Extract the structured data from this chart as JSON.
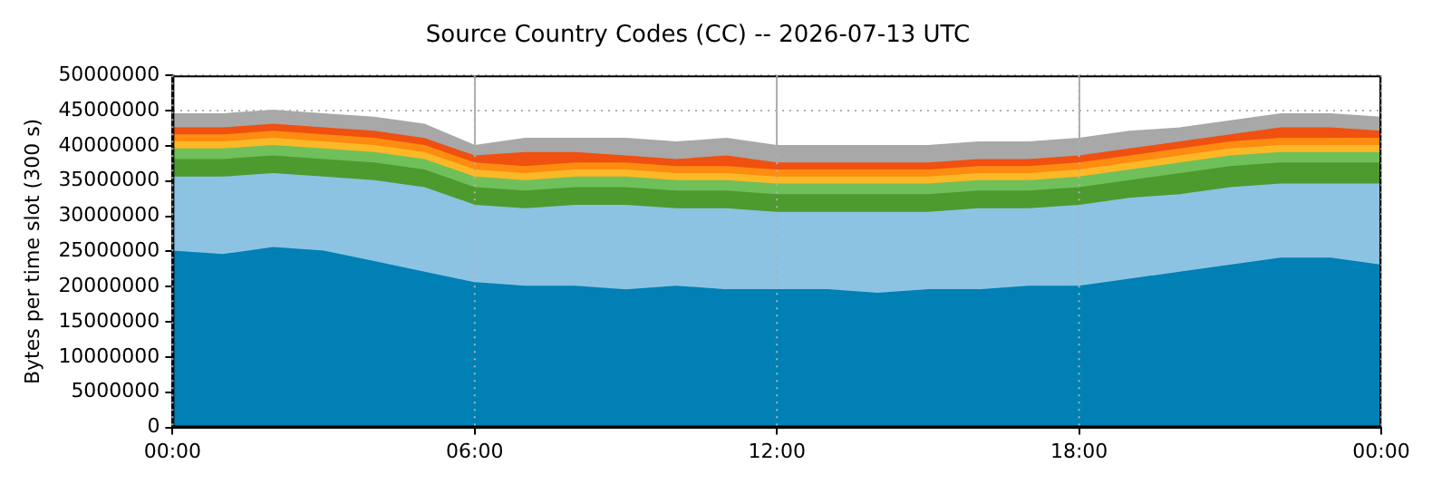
{
  "chart_data": {
    "type": "area",
    "stacked": true,
    "title": "Source Country Codes (CC) -- 2026-07-13 UTC",
    "ylabel": "Bytes per time slot (300 s)",
    "x": [
      0,
      1,
      2,
      3,
      4,
      5,
      6,
      7,
      8,
      9,
      10,
      11,
      12,
      13,
      14,
      15,
      16,
      17,
      18,
      19,
      20,
      21,
      22,
      23,
      24
    ],
    "xlim": [
      0,
      24
    ],
    "xticks": [
      {
        "value": 0,
        "label": "00:00"
      },
      {
        "value": 6,
        "label": "06:00"
      },
      {
        "value": 12,
        "label": "12:00"
      },
      {
        "value": 18,
        "label": "18:00"
      },
      {
        "value": 24,
        "label": "00:00"
      }
    ],
    "ylim": [
      0,
      50000000
    ],
    "yticks": [
      0,
      5000000,
      10000000,
      15000000,
      20000000,
      25000000,
      30000000,
      35000000,
      40000000,
      45000000,
      50000000
    ],
    "grid": true,
    "legend": false,
    "marker": "none",
    "series": [
      {
        "color": "#0080b4",
        "values": [
          25000000,
          24500000,
          25500000,
          25000000,
          23500000,
          22000000,
          20500000,
          20000000,
          20000000,
          19500000,
          20000000,
          19500000,
          19500000,
          19500000,
          19000000,
          19500000,
          19500000,
          20000000,
          20000000,
          21000000,
          22000000,
          23000000,
          24000000,
          24000000,
          23000000
        ]
      },
      {
        "color": "#8cc3e3",
        "values": [
          10500000,
          11000000,
          10500000,
          10500000,
          11500000,
          12000000,
          11000000,
          11000000,
          11500000,
          12000000,
          11000000,
          11500000,
          11000000,
          11000000,
          11500000,
          11000000,
          11500000,
          11000000,
          11500000,
          11500000,
          11000000,
          11000000,
          10500000,
          10500000,
          11500000
        ]
      },
      {
        "color": "#4d9a2f",
        "values": [
          2500000,
          2500000,
          2500000,
          2500000,
          2500000,
          2500000,
          2500000,
          2500000,
          2500000,
          2500000,
          2500000,
          2500000,
          2500000,
          2500000,
          2500000,
          2500000,
          2500000,
          2500000,
          2500000,
          2500000,
          3000000,
          3000000,
          3000000,
          3000000,
          3000000
        ]
      },
      {
        "color": "#6fc05a",
        "values": [
          1500000,
          1500000,
          1500000,
          1500000,
          1500000,
          1500000,
          1500000,
          1500000,
          1500000,
          1500000,
          1500000,
          1500000,
          1500000,
          1500000,
          1500000,
          1500000,
          1500000,
          1500000,
          1500000,
          1500000,
          1500000,
          1500000,
          1500000,
          1500000,
          1500000
        ]
      },
      {
        "color": "#fdb827",
        "values": [
          1000000,
          1000000,
          1000000,
          1000000,
          1000000,
          1000000,
          1000000,
          1000000,
          1000000,
          1000000,
          1000000,
          1000000,
          1000000,
          1000000,
          1000000,
          1000000,
          1000000,
          1000000,
          1000000,
          1000000,
          1000000,
          1000000,
          1000000,
          1000000,
          1000000
        ]
      },
      {
        "color": "#fd8c10",
        "values": [
          1000000,
          1000000,
          1000000,
          1000000,
          1000000,
          1000000,
          1000000,
          1000000,
          1000000,
          1000000,
          1000000,
          1000000,
          1000000,
          1000000,
          1000000,
          1000000,
          1000000,
          1000000,
          1000000,
          1000000,
          1000000,
          1000000,
          1000000,
          1000000,
          1000000
        ]
      },
      {
        "color": "#f05010",
        "values": [
          1000000,
          1000000,
          1000000,
          1000000,
          1000000,
          1000000,
          1000000,
          2000000,
          1500000,
          1000000,
          1000000,
          1500000,
          1000000,
          1000000,
          1000000,
          1000000,
          1000000,
          1000000,
          1000000,
          1000000,
          1000000,
          1000000,
          1500000,
          1500000,
          1000000
        ]
      },
      {
        "color": "#a8a8a8",
        "values": [
          2000000,
          2000000,
          2000000,
          2000000,
          2000000,
          2000000,
          1500000,
          2000000,
          2000000,
          2500000,
          2500000,
          2500000,
          2500000,
          2500000,
          2500000,
          2500000,
          2500000,
          2500000,
          2500000,
          2500000,
          2000000,
          2000000,
          2000000,
          2000000,
          2000000
        ]
      }
    ]
  }
}
